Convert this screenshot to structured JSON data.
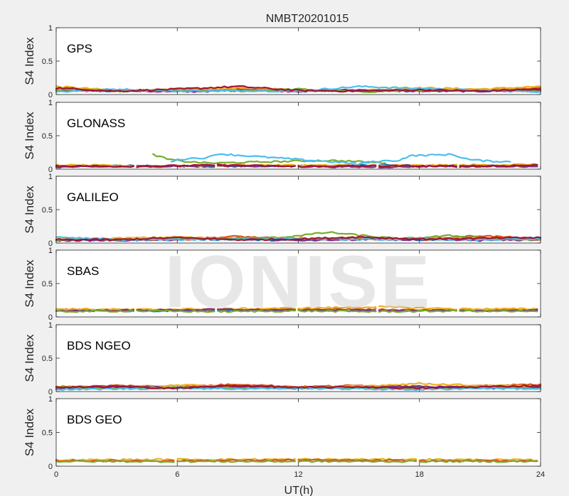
{
  "title": "NMBT20201015",
  "watermark": "IONISE",
  "xlabel": "UT(h)",
  "ylabel": "S4 Index",
  "x_ticks": [
    "0",
    "6",
    "12",
    "18",
    "24"
  ],
  "y_ticks": [
    "0",
    "0.5",
    "1"
  ],
  "colors": [
    "#0072BD",
    "#D95319",
    "#EDB120",
    "#7E2F8E",
    "#77AC30",
    "#4DBEEE",
    "#A2142F"
  ],
  "chart_data": [
    {
      "type": "line",
      "panel": "GPS",
      "xlim": [
        0,
        24
      ],
      "ylim": [
        0,
        1
      ],
      "xlabel": "UT(h)",
      "ylabel": "S4 Index",
      "grid": false,
      "note": "many satellite traces, S4 mostly 0.03-0.12, isolated peaks ~0.15",
      "series": [
        {
          "color": "#0072BD",
          "x": [
            0,
            3,
            6,
            9,
            12,
            15,
            18,
            21,
            24
          ],
          "y": [
            0.06,
            0.05,
            0.06,
            0.07,
            0.05,
            0.06,
            0.05,
            0.07,
            0.06
          ]
        },
        {
          "color": "#D95319",
          "x": [
            0,
            3,
            6,
            9,
            12,
            15,
            18,
            21,
            24
          ],
          "y": [
            0.09,
            0.07,
            0.05,
            0.08,
            0.06,
            0.05,
            0.08,
            0.06,
            0.1
          ]
        },
        {
          "color": "#EDB120",
          "x": [
            0,
            3,
            6,
            9,
            12,
            15,
            18,
            21,
            24
          ],
          "y": [
            0.12,
            0.06,
            0.07,
            0.1,
            0.07,
            0.06,
            0.1,
            0.08,
            0.12
          ]
        },
        {
          "color": "#7E2F8E",
          "x": [
            0,
            3,
            6,
            9,
            12,
            15,
            18,
            21,
            24
          ],
          "y": [
            0.05,
            0.06,
            0.04,
            0.06,
            0.05,
            0.07,
            0.05,
            0.05,
            0.06
          ]
        },
        {
          "color": "#77AC30",
          "x": [
            0,
            3,
            6,
            9,
            12,
            15,
            18,
            21,
            24
          ],
          "y": [
            0.07,
            0.05,
            0.06,
            0.05,
            0.08,
            0.04,
            0.06,
            0.07,
            0.05
          ]
        },
        {
          "color": "#4DBEEE",
          "x": [
            0,
            3,
            6,
            9,
            12,
            15,
            18,
            21,
            24
          ],
          "y": [
            0.04,
            0.08,
            0.05,
            0.06,
            0.05,
            0.12,
            0.09,
            0.06,
            0.04
          ]
        },
        {
          "color": "#A2142F",
          "x": [
            0,
            3,
            6,
            9,
            12,
            15,
            18,
            21,
            24
          ],
          "y": [
            0.1,
            0.05,
            0.08,
            0.12,
            0.06,
            0.05,
            0.07,
            0.05,
            0.08
          ]
        }
      ]
    },
    {
      "type": "line",
      "panel": "GLONASS",
      "xlim": [
        0,
        24
      ],
      "ylim": [
        0,
        1
      ],
      "xlabel": "UT(h)",
      "ylabel": "S4 Index",
      "grid": false,
      "series": [
        {
          "color": "#0072BD",
          "x": [
            0,
            4,
            8,
            12,
            16,
            20,
            24
          ],
          "y": [
            0.04,
            0.05,
            0.04,
            0.05,
            0.06,
            0.04,
            0.05
          ]
        },
        {
          "color": "#D95319",
          "x": [
            0,
            4,
            8,
            12,
            16,
            20,
            24
          ],
          "y": [
            0.05,
            0.04,
            0.06,
            0.05,
            0.04,
            0.05,
            0.04
          ]
        },
        {
          "color": "#EDB120",
          "x": [
            0,
            4,
            8,
            12,
            16,
            20,
            24
          ],
          "y": [
            0.06,
            0.05,
            0.05,
            0.06,
            0.05,
            0.06,
            0.07
          ]
        },
        {
          "color": "#7E2F8E",
          "x": [
            0,
            4,
            8,
            12,
            16,
            20,
            24
          ],
          "y": [
            0.03,
            0.04,
            0.05,
            0.04,
            0.03,
            0.05,
            0.04
          ]
        },
        {
          "color": "#77AC30",
          "x": [
            4.8,
            5.5,
            6.2,
            7.0,
            7.8,
            13.3,
            14.5,
            15.8,
            16.3
          ],
          "y": [
            0.22,
            0.15,
            0.12,
            0.1,
            0.09,
            0.13,
            0.12,
            0.1,
            0.09
          ]
        },
        {
          "color": "#4DBEEE",
          "x": [
            5.7,
            6.5,
            7.5,
            8.0,
            15.0,
            16.0,
            17.0,
            17.5,
            19.6,
            20.5,
            21.5,
            22.5
          ],
          "y": [
            0.12,
            0.16,
            0.17,
            0.23,
            0.08,
            0.12,
            0.13,
            0.2,
            0.22,
            0.14,
            0.12,
            0.11
          ]
        },
        {
          "color": "#A2142F",
          "x": [
            0,
            4,
            8,
            12,
            16,
            20,
            24
          ],
          "y": [
            0.05,
            0.04,
            0.06,
            0.04,
            0.05,
            0.04,
            0.06
          ]
        }
      ]
    },
    {
      "type": "line",
      "panel": "GALILEO",
      "xlim": [
        0,
        24
      ],
      "ylim": [
        0,
        1
      ],
      "xlabel": "UT(h)",
      "ylabel": "S4 Index",
      "grid": false,
      "series": [
        {
          "color": "#0072BD",
          "x": [
            0,
            3,
            6,
            9,
            12,
            15,
            18,
            21,
            24
          ],
          "y": [
            0.05,
            0.04,
            0.06,
            0.05,
            0.04,
            0.06,
            0.05,
            0.06,
            0.08
          ]
        },
        {
          "color": "#D95319",
          "x": [
            0,
            3,
            6,
            9,
            12,
            15,
            18,
            21,
            24
          ],
          "y": [
            0.04,
            0.06,
            0.05,
            0.1,
            0.05,
            0.08,
            0.05,
            0.11,
            0.06
          ]
        },
        {
          "color": "#EDB120",
          "x": [
            0,
            3,
            6,
            9,
            12,
            15,
            18,
            21,
            24
          ],
          "y": [
            0.06,
            0.07,
            0.09,
            0.06,
            0.08,
            0.05,
            0.07,
            0.06,
            0.05
          ]
        },
        {
          "color": "#7E2F8E",
          "x": [
            0,
            3,
            6,
            9,
            12,
            15,
            18,
            21,
            24
          ],
          "y": [
            0.04,
            0.04,
            0.05,
            0.06,
            0.04,
            0.05,
            0.05,
            0.04,
            0.05
          ]
        },
        {
          "color": "#77AC30",
          "x": [
            0,
            4,
            8,
            11,
            13.5,
            17,
            19.5,
            22,
            24
          ],
          "y": [
            0.05,
            0.06,
            0.07,
            0.08,
            0.16,
            0.06,
            0.11,
            0.06,
            0.05
          ]
        },
        {
          "color": "#4DBEEE",
          "x": [
            0,
            3,
            6,
            9,
            12,
            15,
            18,
            21,
            24
          ],
          "y": [
            0.09,
            0.05,
            0.05,
            0.06,
            0.07,
            0.05,
            0.06,
            0.05,
            0.06
          ]
        },
        {
          "color": "#A2142F",
          "x": [
            0,
            3,
            6,
            9,
            12,
            15,
            18,
            21,
            24
          ],
          "y": [
            0.05,
            0.05,
            0.08,
            0.05,
            0.06,
            0.09,
            0.06,
            0.07,
            0.08
          ]
        }
      ]
    },
    {
      "type": "line",
      "panel": "SBAS",
      "xlim": [
        0,
        24
      ],
      "ylim": [
        0,
        1
      ],
      "xlabel": "UT(h)",
      "ylabel": "S4 Index",
      "grid": false,
      "series": [
        {
          "color": "#0072BD",
          "x": [
            0,
            4,
            8,
            12,
            16,
            20,
            24
          ],
          "y": [
            0.1,
            0.09,
            0.1,
            0.1,
            0.09,
            0.1,
            0.1
          ]
        },
        {
          "color": "#D95319",
          "x": [
            0,
            4,
            8,
            12,
            16,
            20,
            24
          ],
          "y": [
            0.11,
            0.1,
            0.11,
            0.12,
            0.11,
            0.1,
            0.11
          ]
        },
        {
          "color": "#EDB120",
          "x": [
            0,
            4,
            8,
            12,
            16,
            20,
            24
          ],
          "y": [
            0.12,
            0.11,
            0.12,
            0.13,
            0.15,
            0.12,
            0.12
          ]
        },
        {
          "color": "#7E2F8E",
          "x": [
            0,
            4,
            8,
            12,
            16,
            20,
            24
          ],
          "y": [
            0.09,
            0.1,
            0.11,
            0.1,
            0.1,
            0.09,
            0.1
          ]
        },
        {
          "color": "#77AC30",
          "x": [
            0,
            4,
            8,
            12,
            16,
            20,
            24
          ],
          "y": [
            0.08,
            0.09,
            0.08,
            0.09,
            0.08,
            0.09,
            0.08
          ]
        }
      ]
    },
    {
      "type": "line",
      "panel": "BDS NGEO",
      "xlim": [
        0,
        24
      ],
      "ylim": [
        0,
        1
      ],
      "xlabel": "UT(h)",
      "ylabel": "S4 Index",
      "grid": false,
      "series": [
        {
          "color": "#0072BD",
          "x": [
            0,
            3,
            6,
            9,
            12,
            15,
            18,
            21,
            24
          ],
          "y": [
            0.04,
            0.06,
            0.05,
            0.07,
            0.05,
            0.08,
            0.06,
            0.07,
            0.05
          ]
        },
        {
          "color": "#D95319",
          "x": [
            0,
            3,
            6,
            9,
            12,
            15,
            18,
            21,
            24
          ],
          "y": [
            0.06,
            0.09,
            0.07,
            0.11,
            0.07,
            0.09,
            0.06,
            0.08,
            0.11
          ]
        },
        {
          "color": "#EDB120",
          "x": [
            0,
            3,
            6,
            9,
            12,
            15,
            18,
            21,
            24
          ],
          "y": [
            0.08,
            0.06,
            0.1,
            0.07,
            0.06,
            0.08,
            0.12,
            0.09,
            0.08
          ]
        },
        {
          "color": "#7E2F8E",
          "x": [
            0,
            3,
            6,
            9,
            12,
            15,
            18,
            21,
            24
          ],
          "y": [
            0.05,
            0.08,
            0.06,
            0.08,
            0.05,
            0.06,
            0.08,
            0.05,
            0.06
          ]
        },
        {
          "color": "#77AC30",
          "x": [
            0,
            3,
            6,
            9,
            12,
            15,
            18,
            21,
            24
          ],
          "y": [
            0.07,
            0.05,
            0.06,
            0.05,
            0.06,
            0.05,
            0.05,
            0.06,
            0.05
          ]
        },
        {
          "color": "#4DBEEE",
          "x": [
            0,
            3,
            6,
            9,
            12,
            15,
            18,
            21,
            24
          ],
          "y": [
            0.03,
            0.04,
            0.05,
            0.04,
            0.05,
            0.04,
            0.03,
            0.05,
            0.04
          ]
        },
        {
          "color": "#A2142F",
          "x": [
            0,
            3,
            6,
            9,
            12,
            15,
            18,
            21,
            24
          ],
          "y": [
            0.06,
            0.07,
            0.05,
            0.09,
            0.06,
            0.07,
            0.05,
            0.07,
            0.09
          ]
        }
      ]
    },
    {
      "type": "line",
      "panel": "BDS GEO",
      "xlim": [
        0,
        24
      ],
      "ylim": [
        0,
        1
      ],
      "xlabel": "UT(h)",
      "ylabel": "S4 Index",
      "grid": false,
      "series": [
        {
          "color": "#EDB120",
          "x": [
            0,
            6,
            12,
            18,
            24
          ],
          "y": [
            0.09,
            0.1,
            0.1,
            0.1,
            0.09
          ]
        },
        {
          "color": "#D95319",
          "x": [
            0,
            6,
            12,
            18,
            24
          ],
          "y": [
            0.08,
            0.08,
            0.09,
            0.08,
            0.08
          ]
        },
        {
          "color": "#77AC30",
          "x": [
            0,
            6,
            12,
            18,
            24
          ],
          "y": [
            0.07,
            0.07,
            0.07,
            0.07,
            0.07
          ]
        }
      ]
    }
  ]
}
